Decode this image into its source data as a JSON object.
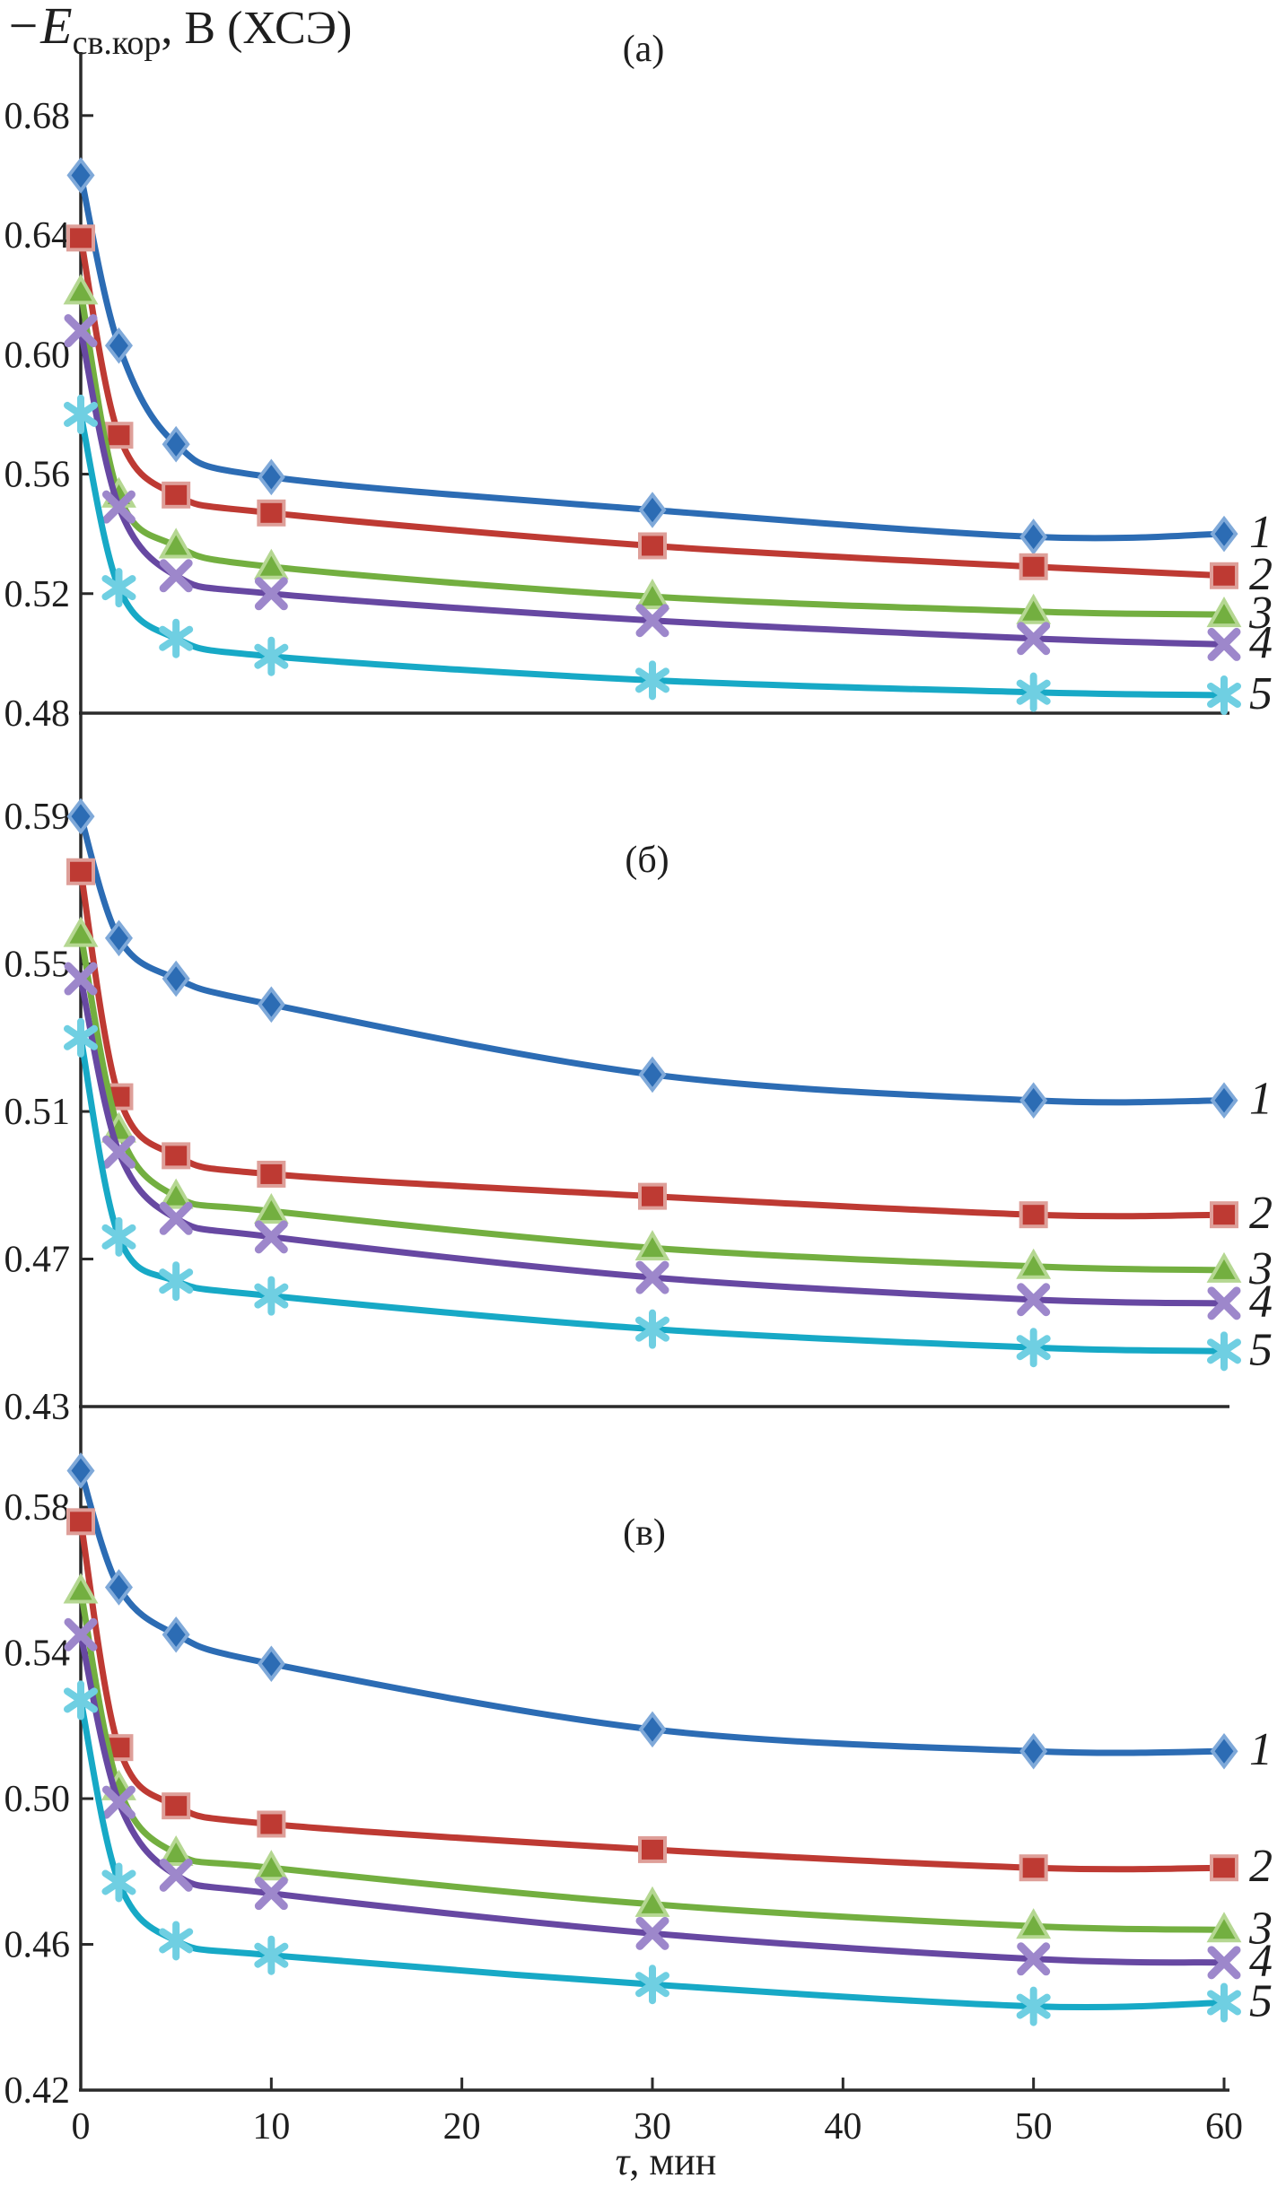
{
  "header": {
    "e": "−E",
    "sub": "св.кор",
    "rest": ", В (ХСЭ)"
  },
  "x_axis_title": {
    "tau": "τ",
    "rest": ", мин"
  },
  "chart_data": {
    "type": "line",
    "x_label": "τ, мин",
    "y_label": "−Eсв.кор, В (ХСЭ)",
    "x_values": [
      0,
      2,
      5,
      10,
      30,
      50,
      60
    ],
    "x_ticks": [
      0,
      10,
      20,
      30,
      40,
      50,
      60
    ],
    "xlim": [
      0,
      60
    ],
    "grid": false,
    "legend_position": "right-end-labels",
    "panels": [
      {
        "title": "(а)",
        "ylim": [
          0.48,
          0.695
        ],
        "y_ticks": [
          0.48,
          0.52,
          0.56,
          0.6,
          0.64,
          0.68
        ],
        "series": [
          {
            "label": "1",
            "marker": "diamond",
            "color": "#2C6CB4",
            "halo": "#7FA9D9",
            "values": [
              0.66,
              0.603,
              0.57,
              0.559,
              0.548,
              0.539,
              0.54
            ]
          },
          {
            "label": "2",
            "marker": "square",
            "color": "#BE3A33",
            "halo": "#DE9F99",
            "values": [
              0.639,
              0.573,
              0.553,
              0.547,
              0.536,
              0.529,
              0.526
            ]
          },
          {
            "label": "3",
            "marker": "triangle",
            "color": "#73AF40",
            "halo": "#B5D792",
            "values": [
              0.621,
              0.553,
              0.536,
              0.529,
              0.519,
              0.514,
              0.513
            ]
          },
          {
            "label": "4",
            "marker": "x",
            "color": "#6748A2",
            "halo": "#9D87CB",
            "values": [
              0.608,
              0.549,
              0.526,
              0.52,
              0.511,
              0.505,
              0.503
            ]
          },
          {
            "label": "5",
            "marker": "asterisk",
            "color": "#17A9C6",
            "halo": "#6FCFE2",
            "values": [
              0.58,
              0.522,
              0.505,
              0.499,
              0.491,
              0.487,
              0.486
            ]
          }
        ]
      },
      {
        "title": "(б)",
        "ylim": [
          0.43,
          0.616
        ],
        "y_ticks": [
          0.43,
          0.47,
          0.51,
          0.55,
          0.59
        ],
        "series": [
          {
            "label": "1",
            "marker": "diamond",
            "color": "#2C6CB4",
            "halo": "#7FA9D9",
            "values": [
              0.59,
              0.557,
              0.546,
              0.539,
              0.52,
              0.513,
              0.513
            ]
          },
          {
            "label": "2",
            "marker": "square",
            "color": "#BE3A33",
            "halo": "#DE9F99",
            "values": [
              0.575,
              0.514,
              0.498,
              0.493,
              0.487,
              0.482,
              0.482
            ]
          },
          {
            "label": "3",
            "marker": "triangle",
            "color": "#73AF40",
            "halo": "#B5D792",
            "values": [
              0.558,
              0.505,
              0.487,
              0.483,
              0.473,
              0.468,
              0.467
            ]
          },
          {
            "label": "4",
            "marker": "x",
            "color": "#6748A2",
            "halo": "#9D87CB",
            "values": [
              0.546,
              0.499,
              0.481,
              0.476,
              0.465,
              0.459,
              0.458
            ]
          },
          {
            "label": "5",
            "marker": "asterisk",
            "color": "#17A9C6",
            "halo": "#6FCFE2",
            "values": [
              0.53,
              0.476,
              0.464,
              0.46,
              0.451,
              0.446,
              0.445
            ]
          }
        ]
      },
      {
        "title": "(в)",
        "ylim": [
          0.42,
          0.607
        ],
        "y_ticks": [
          0.42,
          0.46,
          0.5,
          0.54,
          0.58
        ],
        "series": [
          {
            "label": "1",
            "marker": "diamond",
            "color": "#2C6CB4",
            "halo": "#7FA9D9",
            "values": [
              0.59,
              0.558,
              0.545,
              0.537,
              0.519,
              0.513,
              0.513
            ]
          },
          {
            "label": "2",
            "marker": "square",
            "color": "#BE3A33",
            "halo": "#DE9F99",
            "values": [
              0.576,
              0.514,
              0.498,
              0.493,
              0.486,
              0.481,
              0.481
            ]
          },
          {
            "label": "3",
            "marker": "triangle",
            "color": "#73AF40",
            "halo": "#B5D792",
            "values": [
              0.557,
              0.503,
              0.485,
              0.481,
              0.471,
              0.465,
              0.464
            ]
          },
          {
            "label": "4",
            "marker": "x",
            "color": "#6748A2",
            "halo": "#9D87CB",
            "values": [
              0.545,
              0.499,
              0.479,
              0.474,
              0.463,
              0.456,
              0.455
            ]
          },
          {
            "label": "5",
            "marker": "asterisk",
            "color": "#17A9C6",
            "halo": "#6FCFE2",
            "values": [
              0.527,
              0.477,
              0.461,
              0.457,
              0.449,
              0.443,
              0.444
            ]
          }
        ]
      }
    ]
  }
}
